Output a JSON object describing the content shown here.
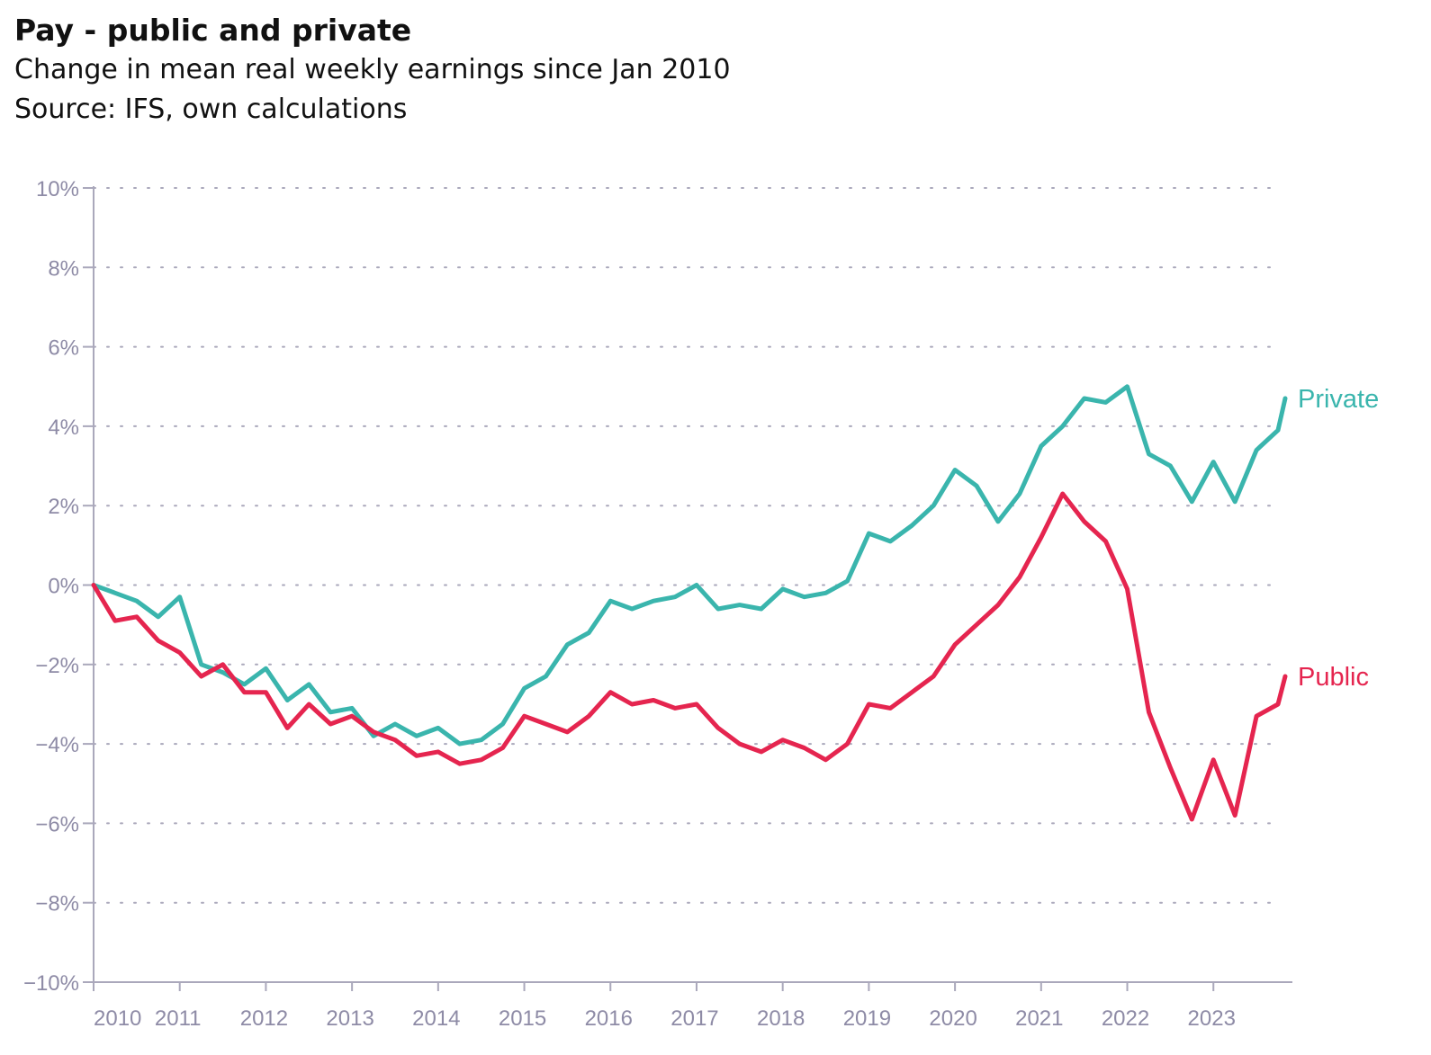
{
  "title": "Pay - public and private",
  "subtitle": "Change in mean real weekly earnings since Jan 2010",
  "source": "Source: IFS, own calculations",
  "chart_data": {
    "type": "line",
    "ylabel": "",
    "xlabel": "",
    "ylim": [
      -10,
      10
    ],
    "yticks": [
      10,
      8,
      6,
      4,
      2,
      0,
      -2,
      -4,
      -6,
      -8,
      -10
    ],
    "ytick_labels": [
      "10%",
      "8%",
      "6%",
      "4%",
      "2%",
      "0%",
      "−2%",
      "−4%",
      "−6%",
      "−8%",
      "−10%"
    ],
    "xticks": [
      "2010",
      "2011",
      "2012",
      "2013",
      "2014",
      "2015",
      "2016",
      "2017",
      "2018",
      "2019",
      "2020",
      "2021",
      "2022",
      "2023"
    ],
    "grid": "horizontal dotted",
    "colors": {
      "Private": "#3ab5ad",
      "Public": "#e5254f"
    },
    "x": [
      "2010-01",
      "2010-04",
      "2010-07",
      "2010-10",
      "2011-01",
      "2011-04",
      "2011-07",
      "2011-10",
      "2012-01",
      "2012-04",
      "2012-07",
      "2012-10",
      "2013-01",
      "2013-04",
      "2013-07",
      "2013-10",
      "2014-01",
      "2014-04",
      "2014-07",
      "2014-10",
      "2015-01",
      "2015-04",
      "2015-07",
      "2015-10",
      "2016-01",
      "2016-04",
      "2016-07",
      "2016-10",
      "2017-01",
      "2017-04",
      "2017-07",
      "2017-10",
      "2018-01",
      "2018-04",
      "2018-07",
      "2018-10",
      "2019-01",
      "2019-04",
      "2019-07",
      "2019-10",
      "2020-01",
      "2020-04",
      "2020-07",
      "2020-10",
      "2021-01",
      "2021-04",
      "2021-07",
      "2021-10",
      "2022-01",
      "2022-04",
      "2022-07",
      "2022-10",
      "2023-01",
      "2023-04",
      "2023-07",
      "2023-10",
      "2023-11"
    ],
    "series": [
      {
        "name": "Private",
        "values": [
          0.0,
          -0.2,
          -0.4,
          -0.8,
          -0.3,
          -2.0,
          -2.2,
          -2.5,
          -2.1,
          -2.9,
          -2.5,
          -3.2,
          -3.1,
          -3.8,
          -3.5,
          -3.8,
          -3.6,
          -4.0,
          -3.9,
          -3.5,
          -2.6,
          -2.3,
          -1.5,
          -1.2,
          -0.4,
          -0.6,
          -0.4,
          -0.3,
          0.0,
          -0.6,
          -0.5,
          -0.6,
          -0.1,
          -0.3,
          -0.2,
          0.1,
          1.3,
          1.1,
          1.5,
          2.0,
          2.9,
          2.5,
          1.6,
          2.3,
          3.5,
          4.0,
          4.7,
          4.6,
          5.0,
          3.3,
          3.0,
          2.1,
          3.1,
          2.1,
          3.4,
          3.9,
          4.7
        ]
      },
      {
        "name": "Public",
        "values": [
          0.0,
          -0.9,
          -0.8,
          -1.4,
          -1.7,
          -2.3,
          -2.0,
          -2.7,
          -2.7,
          -3.6,
          -3.0,
          -3.5,
          -3.3,
          -3.7,
          -3.9,
          -4.3,
          -4.2,
          -4.5,
          -4.4,
          -4.1,
          -3.3,
          -3.5,
          -3.7,
          -3.3,
          -2.7,
          -3.0,
          -2.9,
          -3.1,
          -3.0,
          -3.6,
          -4.0,
          -4.2,
          -3.9,
          -4.1,
          -4.4,
          -4.0,
          -3.0,
          -3.1,
          -2.7,
          -2.3,
          -1.5,
          -1.0,
          -0.5,
          0.2,
          1.2,
          2.3,
          1.6,
          1.1,
          -0.1,
          -3.2,
          -4.6,
          -5.9,
          -4.4,
          -5.8,
          -3.3,
          -3.0,
          -2.3
        ]
      }
    ]
  }
}
